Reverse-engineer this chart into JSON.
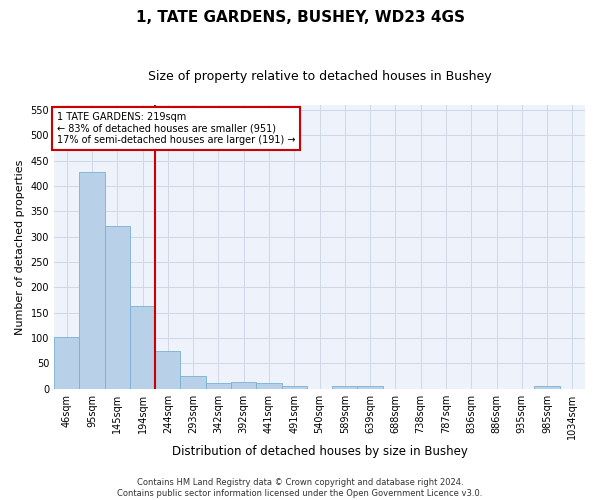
{
  "title": "1, TATE GARDENS, BUSHEY, WD23 4GS",
  "subtitle": "Size of property relative to detached houses in Bushey",
  "xlabel": "Distribution of detached houses by size in Bushey",
  "ylabel": "Number of detached properties",
  "bar_labels": [
    "46sqm",
    "95sqm",
    "145sqm",
    "194sqm",
    "244sqm",
    "293sqm",
    "342sqm",
    "392sqm",
    "441sqm",
    "491sqm",
    "540sqm",
    "589sqm",
    "639sqm",
    "688sqm",
    "738sqm",
    "787sqm",
    "836sqm",
    "886sqm",
    "935sqm",
    "985sqm",
    "1034sqm"
  ],
  "bar_values": [
    103,
    428,
    321,
    163,
    75,
    26,
    11,
    13,
    11,
    5,
    0,
    5,
    5,
    0,
    0,
    0,
    0,
    0,
    0,
    6,
    0
  ],
  "bar_color": "#b8d0e8",
  "bar_edge_color": "#7aafd4",
  "vline_color": "#cc0000",
  "annotation_line1": "1 TATE GARDENS: 219sqm",
  "annotation_line2": "← 83% of detached houses are smaller (951)",
  "annotation_line3": "17% of semi-detached houses are larger (191) →",
  "annotation_box_color": "#ffffff",
  "annotation_box_edge_color": "#cc0000",
  "ylim": [
    0,
    560
  ],
  "yticks": [
    0,
    50,
    100,
    150,
    200,
    250,
    300,
    350,
    400,
    450,
    500,
    550
  ],
  "grid_color": "#d0d8e8",
  "bg_color": "#eef2fa",
  "footer_line1": "Contains HM Land Registry data © Crown copyright and database right 2024.",
  "footer_line2": "Contains public sector information licensed under the Open Government Licence v3.0.",
  "title_fontsize": 11,
  "subtitle_fontsize": 9,
  "xlabel_fontsize": 8.5,
  "ylabel_fontsize": 8,
  "tick_fontsize": 7,
  "annot_fontsize": 7,
  "footer_fontsize": 6
}
